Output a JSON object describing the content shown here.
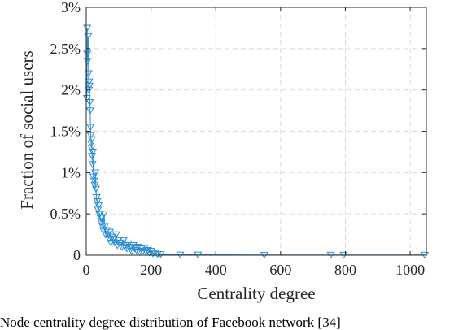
{
  "caption": "Node centrality degree distribution of Facebook network [34]",
  "colors": {
    "series": "#2e8fd4",
    "axis": "#262626",
    "grid": "#d9d9d9"
  },
  "chart_data": {
    "type": "scatter",
    "xlabel": "Centrality degree",
    "ylabel": "Fraction of social users",
    "xlim": [
      0,
      1050
    ],
    "ylim": [
      0,
      3
    ],
    "xticks": [
      0,
      200,
      400,
      600,
      800,
      1000
    ],
    "xtick_labels": [
      "0",
      "200",
      "400",
      "600",
      "800",
      "1000"
    ],
    "yticks": [
      0,
      0.5,
      1,
      1.5,
      2,
      2.5,
      3
    ],
    "ytick_labels": [
      "0",
      "0.5%",
      "1%",
      "1.5%",
      "2%",
      "2.5%",
      "3%"
    ],
    "grid": true,
    "marker": "triangle-down",
    "connected": true,
    "series": [
      {
        "x": [
          1,
          2,
          3,
          4,
          5,
          6,
          7,
          8,
          9,
          10,
          11,
          12,
          13,
          14,
          15,
          16,
          17,
          18,
          19,
          20,
          22,
          24,
          26,
          28,
          30,
          32,
          34,
          36,
          38,
          40,
          42,
          44,
          46,
          48,
          50,
          52,
          55,
          58,
          60,
          63,
          66,
          70,
          73,
          76,
          80,
          84,
          88,
          92,
          96,
          100,
          105,
          110,
          115,
          120,
          125,
          130,
          135,
          140,
          145,
          150,
          155,
          160,
          165,
          170,
          175,
          180,
          185,
          190,
          195,
          200,
          206,
          212,
          220,
          230,
          290,
          345,
          550,
          755,
          795,
          1045
        ],
        "y": [
          2.45,
          1.9,
          2.75,
          2.35,
          2.45,
          2.65,
          2.2,
          2.0,
          2.1,
          2.05,
          1.85,
          1.75,
          1.55,
          1.45,
          1.35,
          1.3,
          1.4,
          1.2,
          1.1,
          1.25,
          0.95,
          0.9,
          0.85,
          1.0,
          0.8,
          0.7,
          0.65,
          0.55,
          0.6,
          0.5,
          0.5,
          0.45,
          0.4,
          0.45,
          0.35,
          0.3,
          0.5,
          0.35,
          0.25,
          0.3,
          0.25,
          0.2,
          0.28,
          0.15,
          0.22,
          0.2,
          0.15,
          0.25,
          0.12,
          0.18,
          0.15,
          0.1,
          0.18,
          0.12,
          0.08,
          0.14,
          0.1,
          0.05,
          0.12,
          0.08,
          0.06,
          0.1,
          0.04,
          0.08,
          0.05,
          0.09,
          0.04,
          0.06,
          0.03,
          0.05,
          0.02,
          0.03,
          0.01,
          0.01,
          0.005,
          0.005,
          0.003,
          0.003,
          0.003,
          0.003
        ]
      }
    ]
  }
}
